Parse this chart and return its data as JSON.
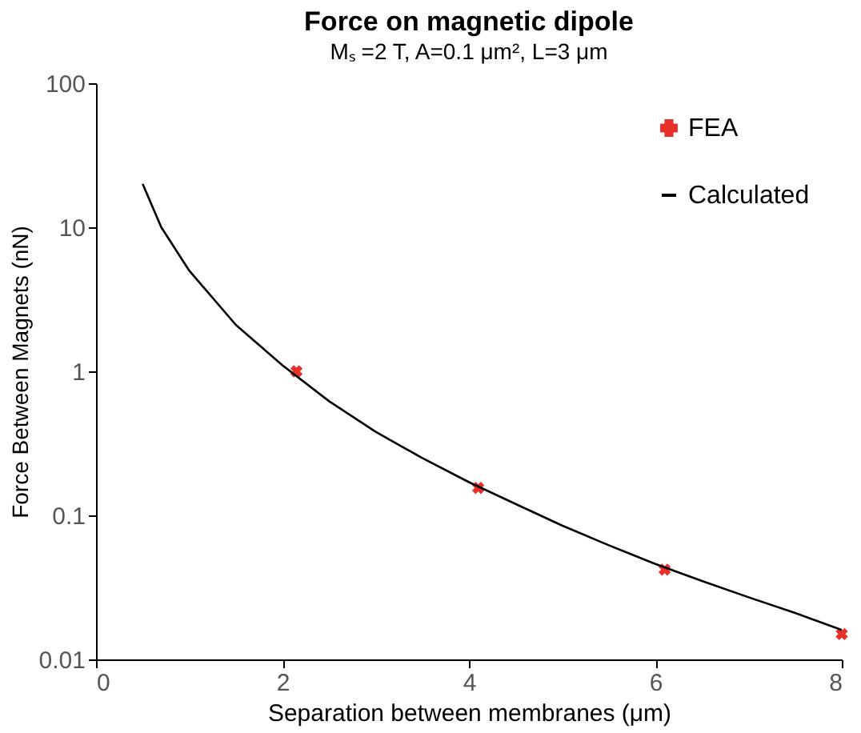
{
  "chart_data": {
    "type": "scatter",
    "title": "Force on magnetic dipole",
    "subtitle": "Mₛ =2 T,  A=0.1 μm²,  L=3 μm",
    "xlabel": "Separation between membranes (μm)",
    "ylabel": "Force Between Magnets (nN)",
    "series": [
      {
        "name": "FEA",
        "color": "#e8302a",
        "marker": "cross",
        "x": [
          2.15,
          4.1,
          6.1,
          8
        ],
        "values": [
          1.0,
          0.155,
          0.042,
          0.015
        ]
      },
      {
        "name": "Calculated",
        "type": "line",
        "color": "#000000",
        "marker": "none",
        "line_style": "solid",
        "x": [
          0.5,
          0.7,
          1,
          1.5,
          2,
          2.5,
          3,
          3.5,
          4,
          4.5,
          5,
          5.5,
          6,
          6.5,
          7,
          7.5,
          8
        ],
        "values": [
          20,
          10,
          5,
          2.1,
          1.1,
          0.62,
          0.38,
          0.25,
          0.17,
          0.12,
          0.085,
          0.062,
          0.046,
          0.035,
          0.027,
          0.021,
          0.016
        ]
      }
    ],
    "xlim": [
      0,
      8
    ],
    "xticks": [
      0,
      2,
      4,
      6,
      8
    ],
    "ylim": [
      0.01,
      100
    ],
    "yticks": [
      0.01,
      0.1,
      1,
      10,
      100
    ],
    "log": "y",
    "grid": false,
    "legend": "top right"
  }
}
